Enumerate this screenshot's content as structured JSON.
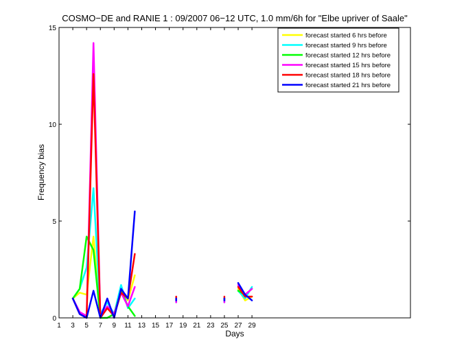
{
  "chart_data": {
    "type": "line",
    "title": "COSMO−DE and RANIE 1 : 09/2007 06−12 UTC, 1.0 mm/6h for \"Elbe upriver of Saale\"",
    "xlabel": "Days",
    "ylabel": "Frequency bias",
    "xlim": [
      1,
      52
    ],
    "ylim": [
      0,
      15
    ],
    "xticks": [
      1,
      3,
      5,
      7,
      9,
      11,
      13,
      15,
      17,
      19,
      21,
      23,
      25,
      27,
      29
    ],
    "yticks": [
      0,
      5,
      10,
      15
    ],
    "grid": false,
    "legend_position": "top-right",
    "series": [
      {
        "name": "forecast started 6 hrs before",
        "color": "#ffff00",
        "segments": [
          [
            [
              3,
              1.0
            ],
            [
              4,
              1.3
            ],
            [
              5,
              1.2
            ],
            [
              6,
              4.2
            ],
            [
              7,
              0.1
            ],
            [
              8,
              0.5
            ],
            [
              9,
              0.2
            ],
            [
              10,
              1.5
            ],
            [
              11,
              0.9
            ],
            [
              12,
              2.2
            ]
          ],
          [
            [
              18,
              0.9
            ],
            [
              18,
              1.0
            ]
          ],
          [
            [
              25,
              0.9
            ],
            [
              25,
              1.0
            ]
          ],
          [
            [
              27,
              1.5
            ],
            [
              28,
              0.9
            ],
            [
              29,
              1.1
            ]
          ]
        ]
      },
      {
        "name": "forecast started 9 hrs before",
        "color": "#00ffff",
        "segments": [
          [
            [
              3,
              1.0
            ],
            [
              4,
              1.5
            ],
            [
              5,
              2.6
            ],
            [
              6,
              6.7
            ],
            [
              7,
              0.2
            ],
            [
              8,
              0.8
            ],
            [
              9,
              0.2
            ],
            [
              10,
              1.7
            ],
            [
              11,
              0.5
            ],
            [
              12,
              1.0
            ]
          ],
          [
            [
              18,
              0.8
            ],
            [
              18,
              0.9
            ]
          ],
          [
            [
              25,
              0.8
            ],
            [
              25,
              0.9
            ]
          ],
          [
            [
              27,
              1.4
            ],
            [
              28,
              1.0
            ],
            [
              29,
              1.6
            ]
          ]
        ]
      },
      {
        "name": "forecast started 12 hrs before",
        "color": "#00ff00",
        "segments": [
          [
            [
              3,
              1.0
            ],
            [
              4,
              1.5
            ],
            [
              5,
              4.2
            ],
            [
              6,
              3.5
            ],
            [
              7,
              0.0
            ],
            [
              8,
              0.0
            ],
            [
              9,
              0.2
            ],
            [
              10,
              1.4
            ],
            [
              11,
              0.6
            ],
            [
              12,
              0.1
            ]
          ],
          [
            [
              18,
              0.9
            ],
            [
              18,
              1.0
            ]
          ],
          [
            [
              25,
              0.9
            ],
            [
              25,
              1.0
            ]
          ],
          [
            [
              27,
              1.4
            ],
            [
              28,
              1.2
            ],
            [
              29,
              1.5
            ]
          ]
        ]
      },
      {
        "name": "forecast started 15 hrs before",
        "color": "#ff00ff",
        "segments": [
          [
            [
              3,
              1.0
            ],
            [
              4,
              0.3
            ],
            [
              5,
              0.1
            ],
            [
              6,
              14.2
            ],
            [
              7,
              0.1
            ],
            [
              8,
              0.6
            ],
            [
              9,
              0.2
            ],
            [
              10,
              1.3
            ],
            [
              11,
              0.6
            ],
            [
              12,
              1.6
            ]
          ],
          [
            [
              18,
              0.8
            ],
            [
              18,
              0.9
            ]
          ],
          [
            [
              25,
              0.8
            ],
            [
              25,
              0.9
            ]
          ],
          [
            [
              27,
              1.7
            ],
            [
              28,
              1.2
            ],
            [
              29,
              1.5
            ]
          ]
        ]
      },
      {
        "name": "forecast started 18 hrs before",
        "color": "#ff0000",
        "segments": [
          [
            [
              3,
              1.0
            ],
            [
              4,
              0.2
            ],
            [
              5,
              0.0
            ],
            [
              6,
              12.6
            ],
            [
              7,
              0.0
            ],
            [
              8,
              0.5
            ],
            [
              9,
              0.1
            ],
            [
              10,
              1.3
            ],
            [
              11,
              1.0
            ],
            [
              12,
              3.3
            ]
          ],
          [
            [
              18,
              1.0
            ],
            [
              18,
              1.1
            ]
          ],
          [
            [
              25,
              1.0
            ],
            [
              25,
              1.1
            ]
          ],
          [
            [
              27,
              1.6
            ],
            [
              28,
              1.1
            ],
            [
              29,
              1.1
            ]
          ]
        ]
      },
      {
        "name": "forecast started 21 hrs before",
        "color": "#0000ff",
        "segments": [
          [
            [
              3,
              1.0
            ],
            [
              4,
              0.2
            ],
            [
              5,
              0.0
            ],
            [
              6,
              1.4
            ],
            [
              7,
              0.0
            ],
            [
              8,
              1.0
            ],
            [
              9,
              0.0
            ],
            [
              10,
              1.5
            ],
            [
              11,
              1.0
            ],
            [
              12,
              5.5
            ]
          ],
          [
            [
              18,
              0.9
            ],
            [
              18,
              1.0
            ]
          ],
          [
            [
              25,
              0.9
            ],
            [
              25,
              1.0
            ]
          ],
          [
            [
              27,
              1.8
            ],
            [
              28,
              1.2
            ],
            [
              29,
              0.9
            ]
          ]
        ]
      }
    ]
  }
}
